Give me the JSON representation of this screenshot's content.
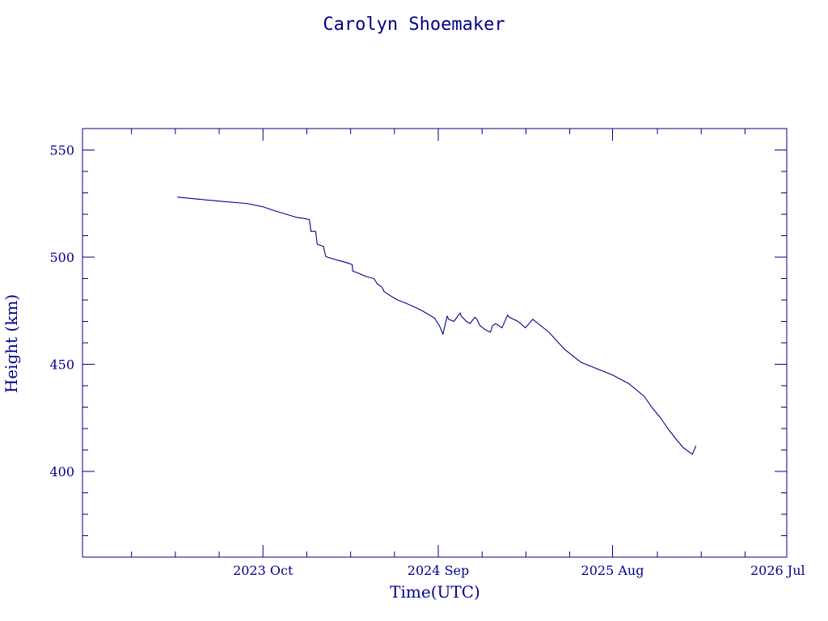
{
  "colors": {
    "ink": "#00008b",
    "background": "#ffffff"
  },
  "chart_data": {
    "type": "line",
    "title": "Carolyn Shoemaker",
    "xlabel": "Time(UTC)",
    "ylabel": "Height (km)",
    "grid": false,
    "legend": "none",
    "xlim": [
      "2022-10-20",
      "2026-07-01"
    ],
    "ylim": [
      360,
      560
    ],
    "x_ticks": [
      {
        "date": "2023-10-01",
        "label": "2023 Oct"
      },
      {
        "date": "2024-09-01",
        "label": "2024 Sep"
      },
      {
        "date": "2025-08-01",
        "label": "2025 Aug"
      },
      {
        "date": "2026-07-01",
        "label": "2026 Jul"
      }
    ],
    "y_ticks": [
      {
        "value": 400,
        "label": "400"
      },
      {
        "value": 450,
        "label": "450"
      },
      {
        "value": 500,
        "label": "500"
      },
      {
        "value": 550,
        "label": "550"
      }
    ],
    "series": [
      {
        "x": [
          "2023-04-20",
          "2023-06-01",
          "2023-07-15",
          "2023-09-01",
          "2023-10-01",
          "2023-10-25",
          "2023-11-15",
          "2023-12-05",
          "2023-12-20",
          "2023-12-29",
          "2024-01-01",
          "2024-01-10",
          "2024-01-13",
          "2024-01-25",
          "2024-01-29",
          "2024-02-01",
          "2024-02-15",
          "2024-03-01",
          "2024-03-15",
          "2024-03-20",
          "2024-03-21",
          "2024-04-01",
          "2024-04-15",
          "2024-05-01",
          "2024-05-07",
          "2024-05-10",
          "2024-05-16",
          "2024-05-20",
          "2024-06-01",
          "2024-06-15",
          "2024-07-01",
          "2024-07-15",
          "2024-08-01",
          "2024-08-15",
          "2024-08-25",
          "2024-09-03",
          "2024-09-05",
          "2024-09-10",
          "2024-09-18",
          "2024-09-21",
          "2024-10-01",
          "2024-10-13",
          "2024-10-15",
          "2024-10-25",
          "2024-11-01",
          "2024-11-10",
          "2024-11-14",
          "2024-11-20",
          "2024-12-01",
          "2024-12-10",
          "2024-12-14",
          "2024-12-20",
          "2025-01-01",
          "2025-01-12",
          "2025-01-15",
          "2025-02-01",
          "2025-02-15",
          "2025-03-01",
          "2025-04-01",
          "2025-05-01",
          "2025-06-01",
          "2025-07-01",
          "2025-08-01",
          "2025-09-01",
          "2025-10-01",
          "2025-10-15",
          "2025-11-01",
          "2025-11-15",
          "2025-12-01",
          "2025-12-15",
          "2026-01-01",
          "2026-01-08"
        ],
        "y": [
          528,
          527,
          526,
          525,
          523.5,
          521.5,
          520,
          518.5,
          518,
          517.5,
          512,
          512,
          506,
          505,
          500.5,
          500,
          499,
          498,
          497,
          496.5,
          493.5,
          492.5,
          491,
          490,
          487.5,
          487,
          486,
          484,
          482,
          480,
          478.5,
          477,
          475,
          473,
          471.5,
          468,
          467,
          464,
          472.5,
          471,
          470,
          474,
          472.5,
          470,
          469,
          472,
          471,
          468,
          466,
          465,
          468,
          469,
          467,
          473,
          472,
          470,
          467,
          471,
          465,
          457,
          451,
          448,
          445,
          441,
          435,
          430,
          425,
          420,
          415,
          411,
          408,
          412
        ]
      }
    ]
  }
}
